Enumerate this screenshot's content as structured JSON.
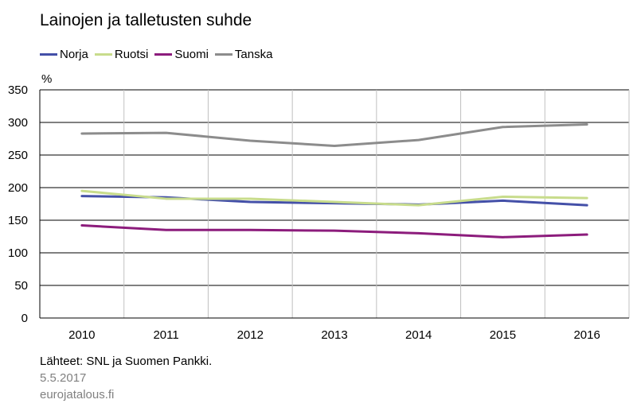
{
  "chart_data": {
    "type": "line",
    "title": "Lainojen ja talletusten suhde",
    "ylabel": "%",
    "xlabel": "",
    "x": [
      "2010",
      "2011",
      "2012",
      "2013",
      "2014",
      "2015",
      "2016"
    ],
    "ylim": [
      0,
      350
    ],
    "yticks": [
      0,
      50,
      100,
      150,
      200,
      250,
      300,
      350
    ],
    "grid": true,
    "legend_position": "top-left",
    "series": [
      {
        "name": "Norja",
        "color": "#4450a8",
        "values": [
          187,
          185,
          178,
          176,
          174,
          180,
          173
        ]
      },
      {
        "name": "Ruotsi",
        "color": "#c8dc8c",
        "values": [
          195,
          183,
          183,
          178,
          173,
          186,
          184
        ]
      },
      {
        "name": "Suomi",
        "color": "#8c1c7c",
        "values": [
          142,
          135,
          135,
          134,
          130,
          124,
          128
        ]
      },
      {
        "name": "Tanska",
        "color": "#8c8c8c",
        "values": [
          283,
          284,
          272,
          264,
          273,
          293,
          297
        ]
      }
    ]
  },
  "footer": {
    "source": "Lähteet: SNL ja Suomen Pankki.",
    "date": "5.5.2017",
    "site": "eurojatalous.fi"
  }
}
